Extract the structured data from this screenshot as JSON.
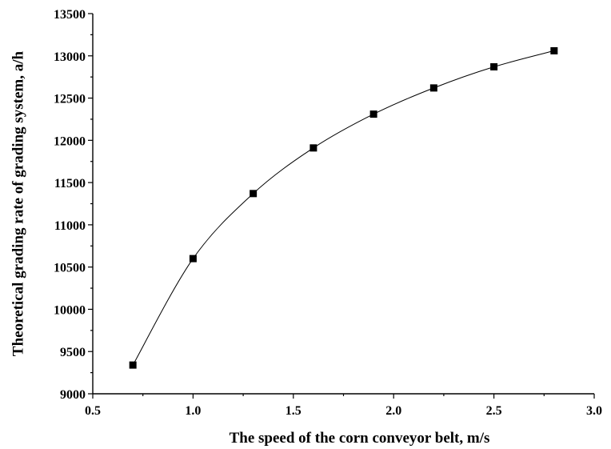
{
  "chart_data": {
    "type": "scatter",
    "title": "",
    "xlabel": "The speed of the corn  conveyor belt, m/s",
    "ylabel": "Theoretical grading rate of grading system, a/h",
    "xlim": [
      0.5,
      3.0
    ],
    "ylim": [
      9000,
      13500
    ],
    "x_ticks": [
      "0.5",
      "1.0",
      "1.5",
      "2.0",
      "2.5",
      "3.0"
    ],
    "y_ticks": [
      "9000",
      "9500",
      "10000",
      "10500",
      "11000",
      "11500",
      "12000",
      "12500",
      "13000",
      "13500"
    ],
    "grid": false,
    "legend": "none",
    "marker": "filled-square",
    "fitted_curve": true,
    "series": [
      {
        "x": [
          0.7,
          1.0,
          1.3,
          1.6,
          1.9,
          2.2,
          2.5,
          2.8
        ],
        "y": [
          9340,
          10600,
          11370,
          11910,
          12310,
          12620,
          12870,
          13060
        ]
      }
    ]
  }
}
